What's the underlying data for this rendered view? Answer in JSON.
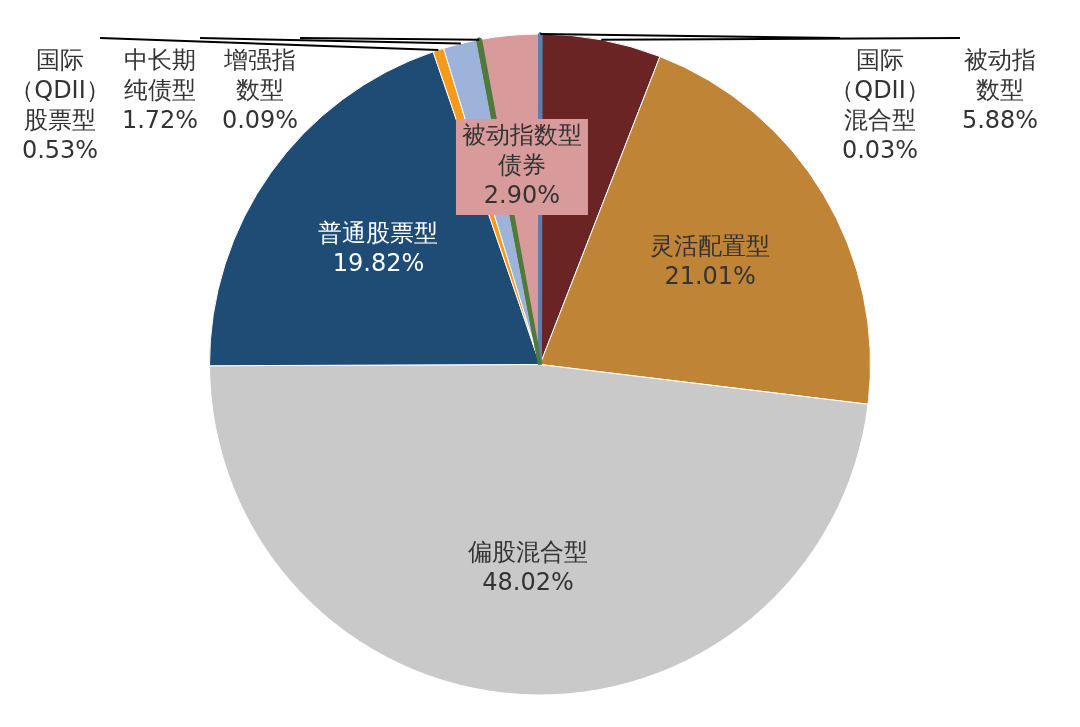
{
  "chart_data": {
    "type": "pie",
    "categories": [
      "国际（QDII）混合型",
      "被动指数型",
      "灵活配置型",
      "偏股混合型",
      "普通股票型",
      "国际（QDII）股票型",
      "中长期纯债型",
      "增强指数型",
      "被动指数型债券"
    ],
    "values": [
      0.03,
      5.88,
      21.01,
      48.02,
      19.82,
      0.53,
      1.72,
      0.09,
      2.9
    ],
    "value_labels": [
      "0.03%",
      "5.88%",
      "21.01%",
      "48.02%",
      "19.82%",
      "0.53%",
      "1.72%",
      "0.09%",
      "2.90%"
    ],
    "colors": [
      "#5a7fb0",
      "#6b2424",
      "#c08437",
      "#c9c9c9",
      "#1f4c74",
      "#f59a1b",
      "#9db3da",
      "#4f7a3a",
      "#d89a9b"
    ],
    "legend": false
  }
}
